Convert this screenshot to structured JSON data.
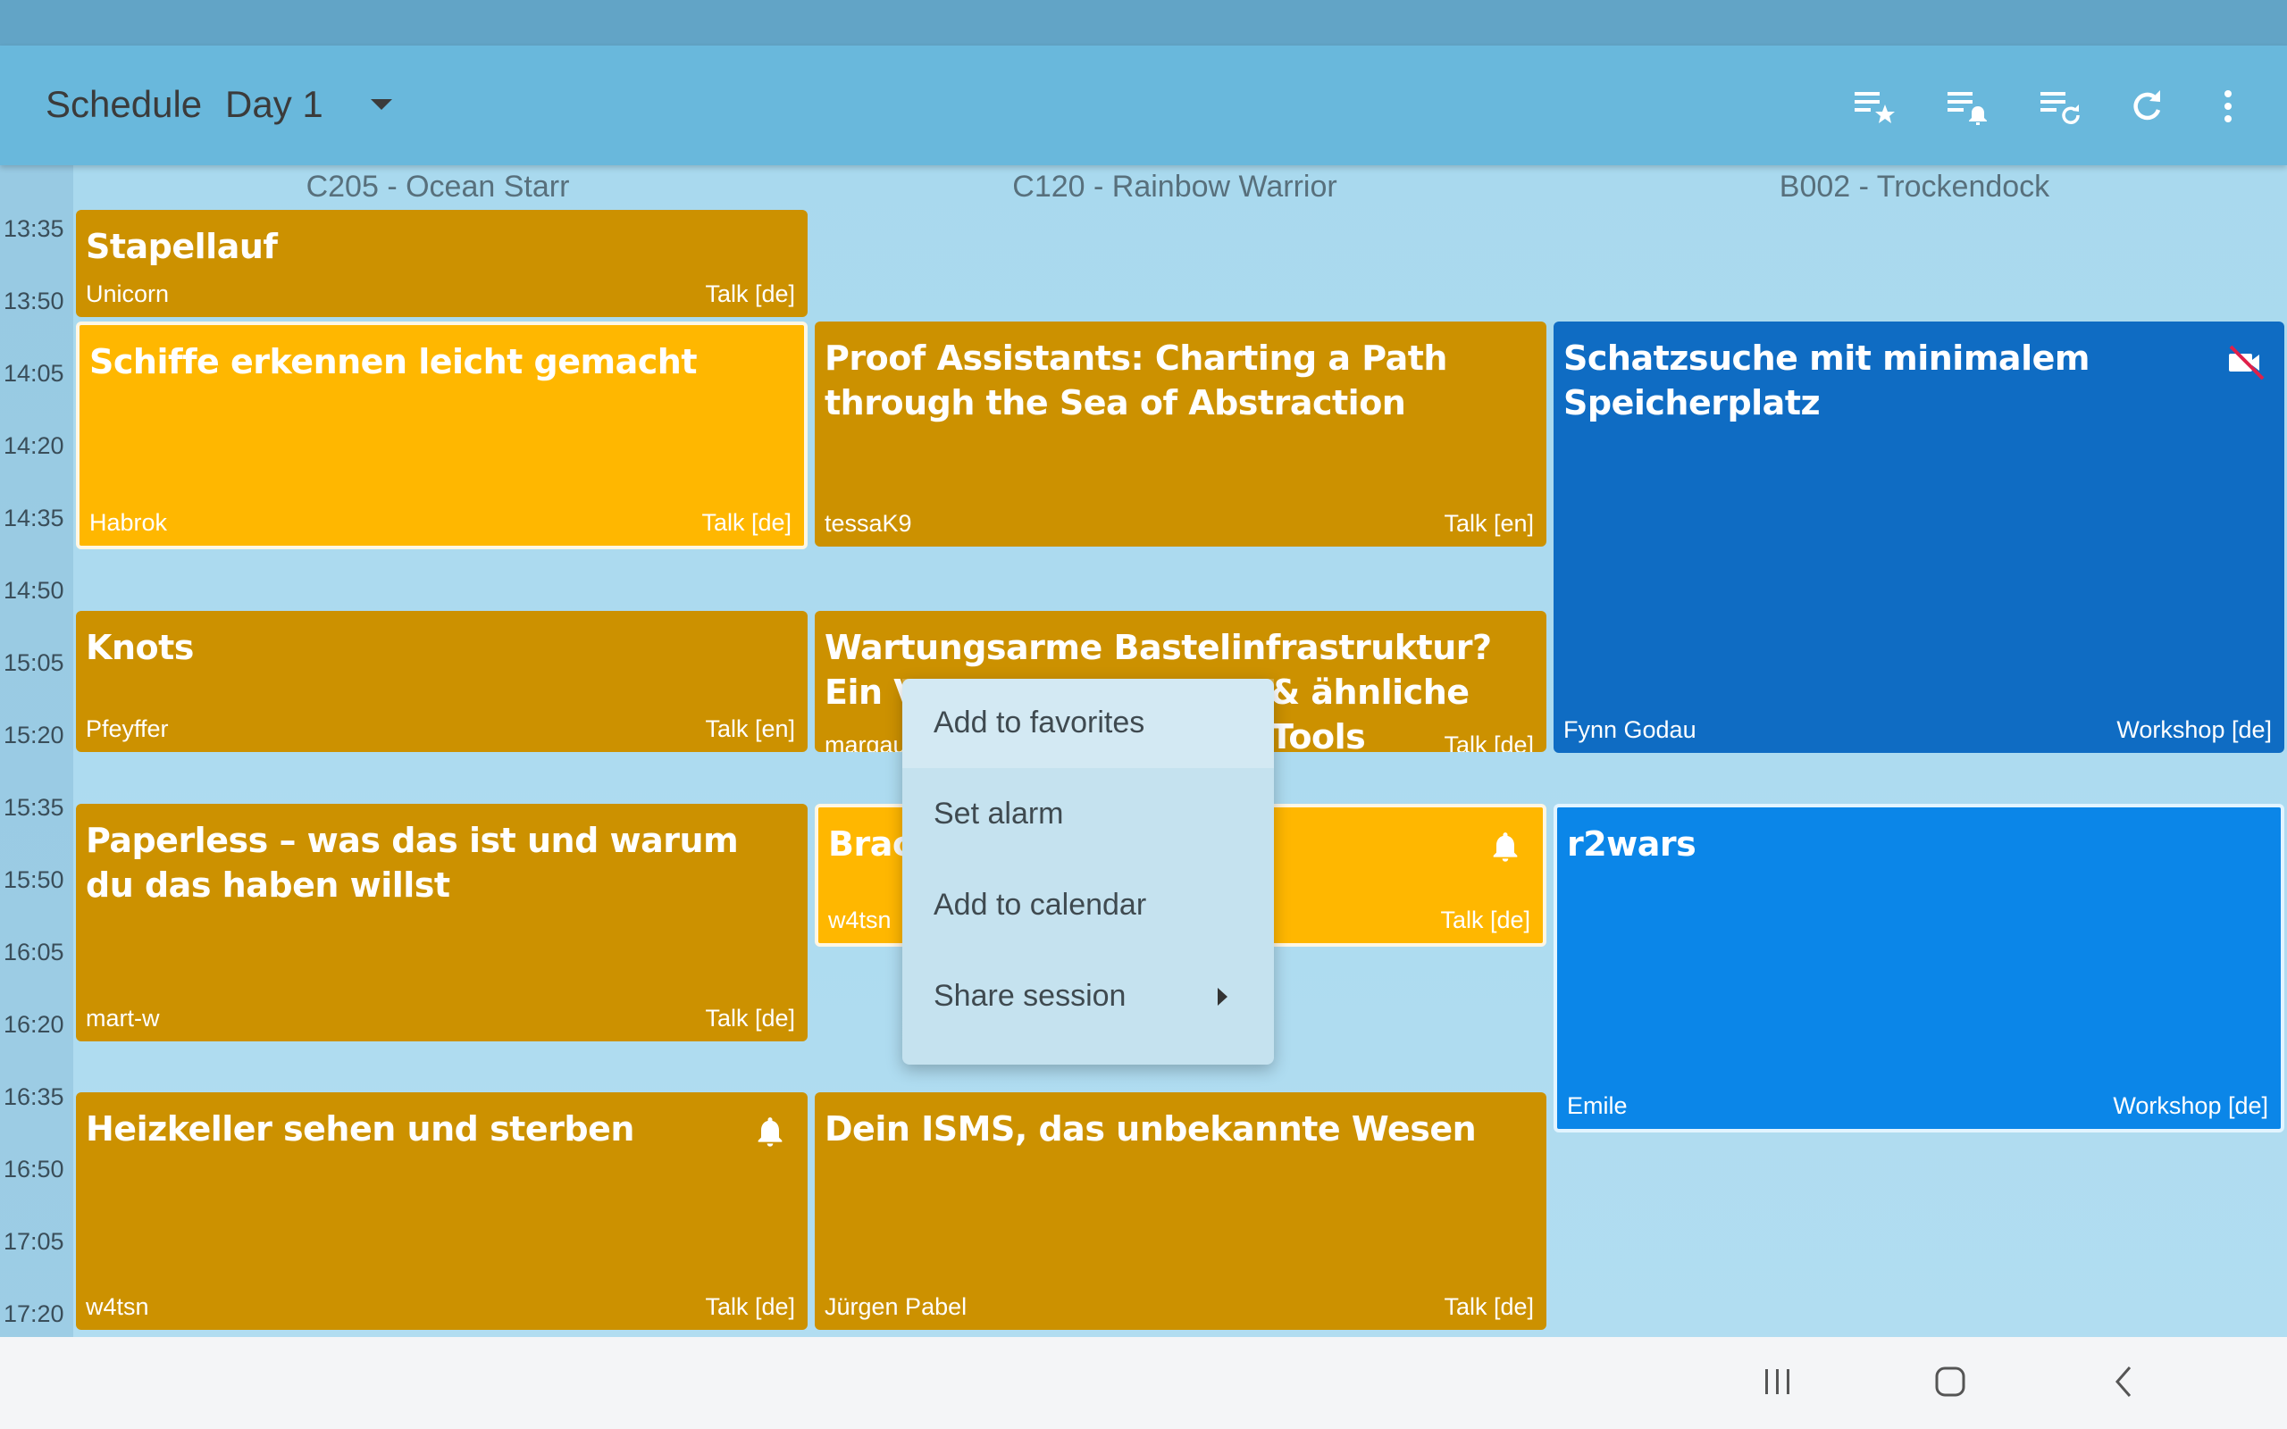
{
  "app": {
    "title": "Schedule",
    "day": "Day 1"
  },
  "rooms": [
    "C205 - Ocean Starr",
    "C120 - Rainbow Warrior",
    "B002 - Trockendock"
  ],
  "times": [
    "13:35",
    "13:50",
    "14:05",
    "14:20",
    "14:35",
    "14:50",
    "15:05",
    "15:20",
    "15:35",
    "15:50",
    "16:05",
    "16:20",
    "16:35",
    "16:50",
    "17:05",
    "17:20"
  ],
  "actions": [
    "starred-list-icon",
    "alarm-list-icon",
    "refresh-list-icon",
    "refresh-icon",
    "more-vert-icon"
  ],
  "events": [
    {
      "title": "Stapellauf",
      "speaker": "Unicorn",
      "type": "Talk [de]"
    },
    {
      "title": "Schiffe erkennen leicht gemacht",
      "speaker": "Habrok",
      "type": "Talk [de]"
    },
    {
      "title": "Proof Assistants: Charting a Path through the Sea of Abstraction",
      "speaker": "tessaK9",
      "type": "Talk [en]"
    },
    {
      "title": "Schatzsuche mit minimalem Speicherplatz",
      "speaker": "Fynn Godau",
      "type": "Workshop [de]"
    },
    {
      "title": "Knots",
      "speaker": "Pfeyffer",
      "type": "Talk [en]"
    },
    {
      "title": "Wartungsarme Bastelinfrastruktur? Ein Versu",
      "title_end": "& ähnliche Tools",
      "speaker": "margau",
      "type": "Talk [de]"
    },
    {
      "title": "Paperless – was das ist und warum du das haben willst",
      "speaker": "mart-w",
      "type": "Talk [de]"
    },
    {
      "title": "Brack",
      "speaker": "w4tsn",
      "type": "Talk [de]"
    },
    {
      "title": "r2wars",
      "speaker": "Emile",
      "type": "Workshop [de]"
    },
    {
      "title": "Heizkeller sehen und sterben",
      "speaker": "w4tsn",
      "type": "Talk [de]"
    },
    {
      "title": "Dein ISMS, das unbekannte Wesen",
      "speaker": "Jürgen Pabel",
      "type": "Talk [de]"
    }
  ],
  "menu": [
    "Add to favorites",
    "Set alarm",
    "Add to calendar",
    "Share session"
  ],
  "colors": {
    "appbar": "#69b8dc",
    "talk": "#cc9100",
    "highlighted": "#ffb700",
    "workshop": "#0f6cc3",
    "workshop_highlighted": "#0b86e8"
  }
}
